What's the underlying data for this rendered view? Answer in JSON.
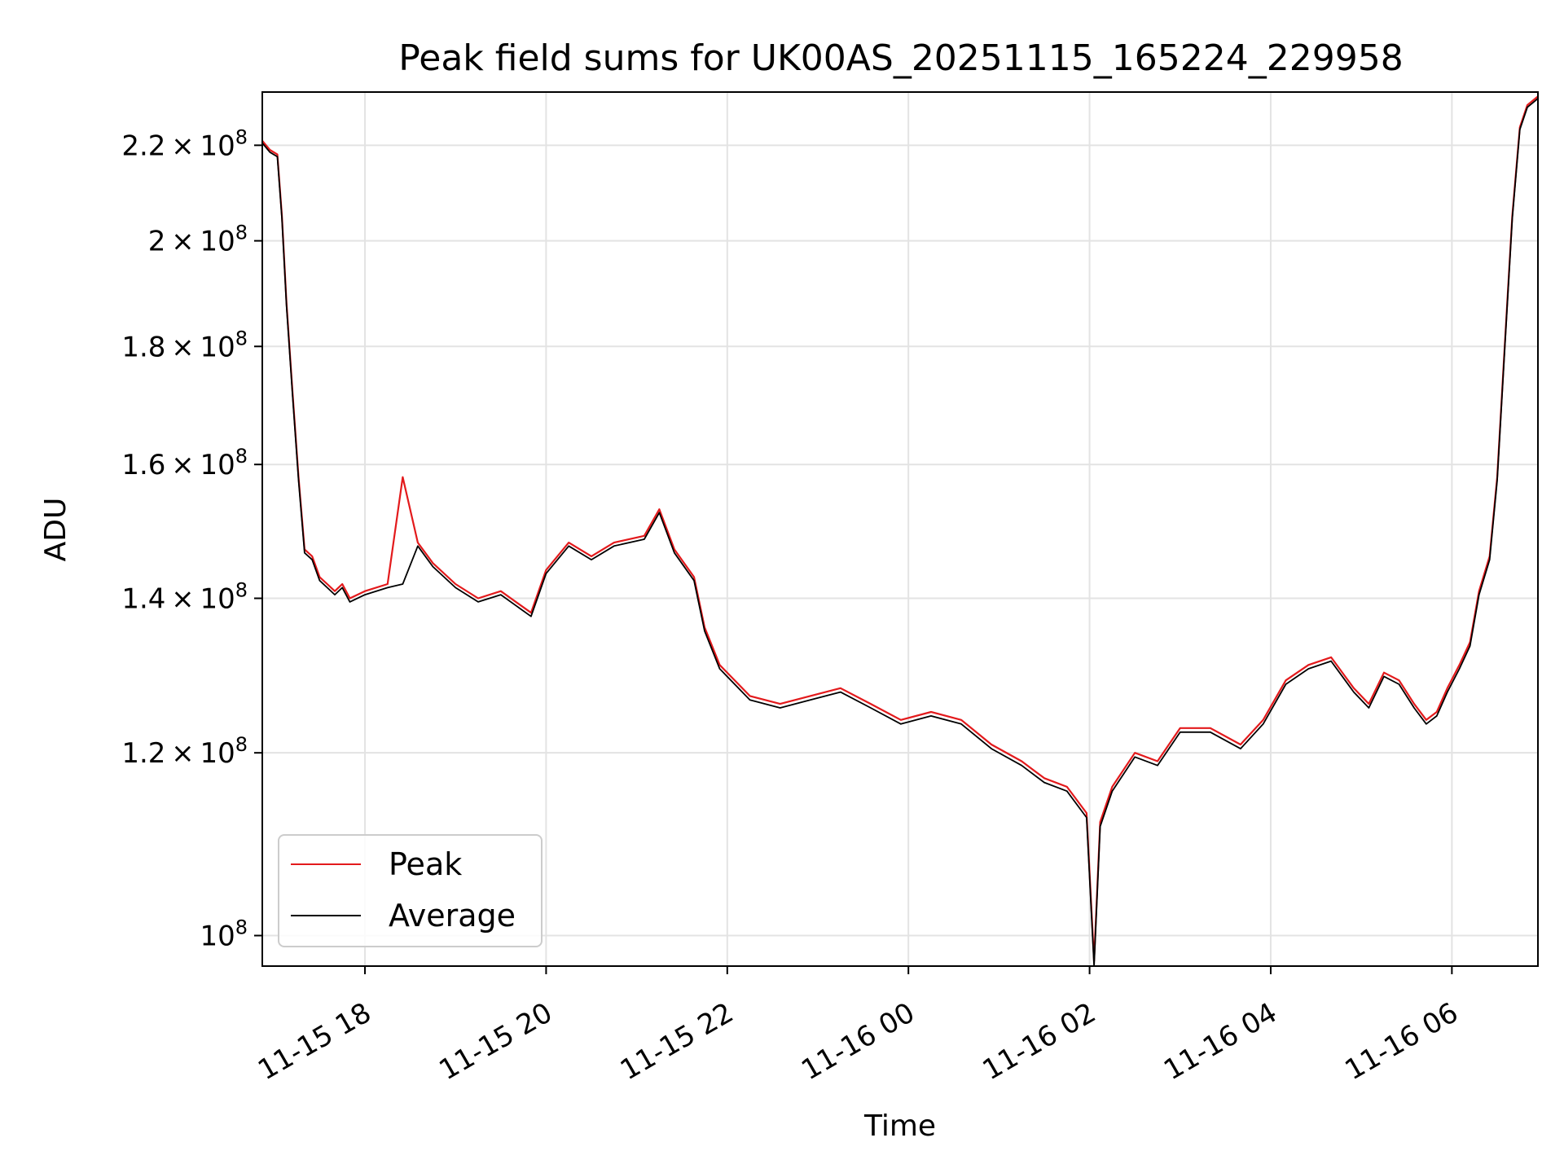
{
  "chart_data": {
    "type": "line",
    "title": "Peak field sums for UK00AS_20251115_165224_229958",
    "xlabel": "Time",
    "ylabel": "ADU",
    "yscale": "log",
    "ylim": [
      97000000,
      232000000
    ],
    "xlim": [
      "2025-11-15 16:52",
      "2025-11-16 06:57"
    ],
    "grid": true,
    "legend_position": "lower-left",
    "x_ticks": [
      {
        "value": "2025-11-15 18:00",
        "label": "11-15 18"
      },
      {
        "value": "2025-11-15 20:00",
        "label": "11-15 20"
      },
      {
        "value": "2025-11-15 22:00",
        "label": "11-15 22"
      },
      {
        "value": "2025-11-16 00:00",
        "label": "11-16 00"
      },
      {
        "value": "2025-11-16 02:00",
        "label": "11-16 02"
      },
      {
        "value": "2025-11-16 04:00",
        "label": "11-16 04"
      },
      {
        "value": "2025-11-16 06:00",
        "label": "11-16 06"
      }
    ],
    "y_ticks": [
      {
        "value": 100000000,
        "mantissa": "",
        "exponent": "8"
      },
      {
        "value": 120000000,
        "mantissa": "1.2",
        "exponent": "8"
      },
      {
        "value": 140000000,
        "mantissa": "1.4",
        "exponent": "8"
      },
      {
        "value": 160000000,
        "mantissa": "1.6",
        "exponent": "8"
      },
      {
        "value": 180000000,
        "mantissa": "1.8",
        "exponent": "8"
      },
      {
        "value": 200000000,
        "mantissa": "2",
        "exponent": "8"
      },
      {
        "value": 220000000,
        "mantissa": "2.2",
        "exponent": "8"
      }
    ],
    "x": [
      "2025-11-15 16:52",
      "2025-11-15 16:57",
      "2025-11-15 17:02",
      "2025-11-15 17:05",
      "2025-11-15 17:08",
      "2025-11-15 17:12",
      "2025-11-15 17:16",
      "2025-11-15 17:20",
      "2025-11-15 17:25",
      "2025-11-15 17:30",
      "2025-11-15 17:35",
      "2025-11-15 17:40",
      "2025-11-15 17:45",
      "2025-11-15 17:50",
      "2025-11-15 18:00",
      "2025-11-15 18:15",
      "2025-11-15 18:25",
      "2025-11-15 18:35",
      "2025-11-15 18:45",
      "2025-11-15 19:00",
      "2025-11-15 19:15",
      "2025-11-15 19:30",
      "2025-11-15 19:50",
      "2025-11-15 20:00",
      "2025-11-15 20:15",
      "2025-11-15 20:30",
      "2025-11-15 20:45",
      "2025-11-15 21:05",
      "2025-11-15 21:15",
      "2025-11-15 21:25",
      "2025-11-15 21:38",
      "2025-11-15 21:45",
      "2025-11-15 21:55",
      "2025-11-15 22:15",
      "2025-11-15 22:35",
      "2025-11-15 22:55",
      "2025-11-15 23:15",
      "2025-11-15 23:35",
      "2025-11-15 23:55",
      "2025-11-16 00:15",
      "2025-11-16 00:35",
      "2025-11-16 00:55",
      "2025-11-16 01:15",
      "2025-11-16 01:30",
      "2025-11-16 01:45",
      "2025-11-16 01:58",
      "2025-11-16 02:03",
      "2025-11-16 02:07",
      "2025-11-16 02:15",
      "2025-11-16 02:30",
      "2025-11-16 02:45",
      "2025-11-16 03:00",
      "2025-11-16 03:20",
      "2025-11-16 03:40",
      "2025-11-16 03:55",
      "2025-11-16 04:10",
      "2025-11-16 04:25",
      "2025-11-16 04:40",
      "2025-11-16 04:55",
      "2025-11-16 05:05",
      "2025-11-16 05:15",
      "2025-11-16 05:25",
      "2025-11-16 05:35",
      "2025-11-16 05:43",
      "2025-11-16 05:50",
      "2025-11-16 05:57",
      "2025-11-16 06:05",
      "2025-11-16 06:12",
      "2025-11-16 06:18",
      "2025-11-16 06:25",
      "2025-11-16 06:30",
      "2025-11-16 06:35",
      "2025-11-16 06:40",
      "2025-11-16 06:45",
      "2025-11-16 06:50",
      "2025-11-16 06:57"
    ],
    "series": [
      {
        "name": "Peak",
        "color": "#e31a1c",
        "values": [
          221000000,
          219000000,
          218000000,
          205000000,
          188000000,
          172000000,
          158000000,
          147000000,
          146000000,
          143000000,
          142000000,
          141000000,
          142000000,
          140000000,
          141000000,
          142000000,
          158000000,
          148000000,
          145000000,
          142000000,
          140000000,
          141000000,
          138000000,
          144000000,
          148000000,
          146000000,
          148000000,
          149000000,
          153000000,
          147000000,
          143000000,
          136000000,
          131000000,
          127000000,
          126000000,
          127000000,
          128000000,
          126000000,
          124000000,
          125000000,
          124000000,
          121000000,
          119000000,
          117000000,
          116000000,
          113000000,
          97500000,
          112000000,
          116000000,
          120000000,
          119000000,
          123000000,
          123000000,
          121000000,
          124000000,
          129000000,
          131000000,
          132000000,
          128000000,
          126000000,
          130000000,
          129000000,
          126000000,
          124000000,
          125000000,
          128000000,
          131000000,
          134000000,
          141000000,
          146000000,
          158000000,
          180000000,
          205000000,
          224000000,
          229000000,
          231000000
        ]
      },
      {
        "name": "Average",
        "color": "#000000",
        "values": [
          220500000,
          218500000,
          217500000,
          204500000,
          187500000,
          171500000,
          157500000,
          146500000,
          145500000,
          142500000,
          141500000,
          140500000,
          141500000,
          139500000,
          140500000,
          141500000,
          142000000,
          147500000,
          144500000,
          141500000,
          139500000,
          140500000,
          137500000,
          143500000,
          147500000,
          145500000,
          147500000,
          148500000,
          152500000,
          146500000,
          142500000,
          135500000,
          130500000,
          126500000,
          125500000,
          126500000,
          127500000,
          125500000,
          123500000,
          124500000,
          123500000,
          120500000,
          118500000,
          116500000,
          115500000,
          112500000,
          97000000,
          111500000,
          115500000,
          119500000,
          118500000,
          122500000,
          122500000,
          120500000,
          123500000,
          128500000,
          130500000,
          131500000,
          127500000,
          125500000,
          129500000,
          128500000,
          125500000,
          123500000,
          124500000,
          127500000,
          130500000,
          133500000,
          140500000,
          145500000,
          157500000,
          179500000,
          204500000,
          223500000,
          228500000,
          230500000
        ]
      }
    ]
  }
}
